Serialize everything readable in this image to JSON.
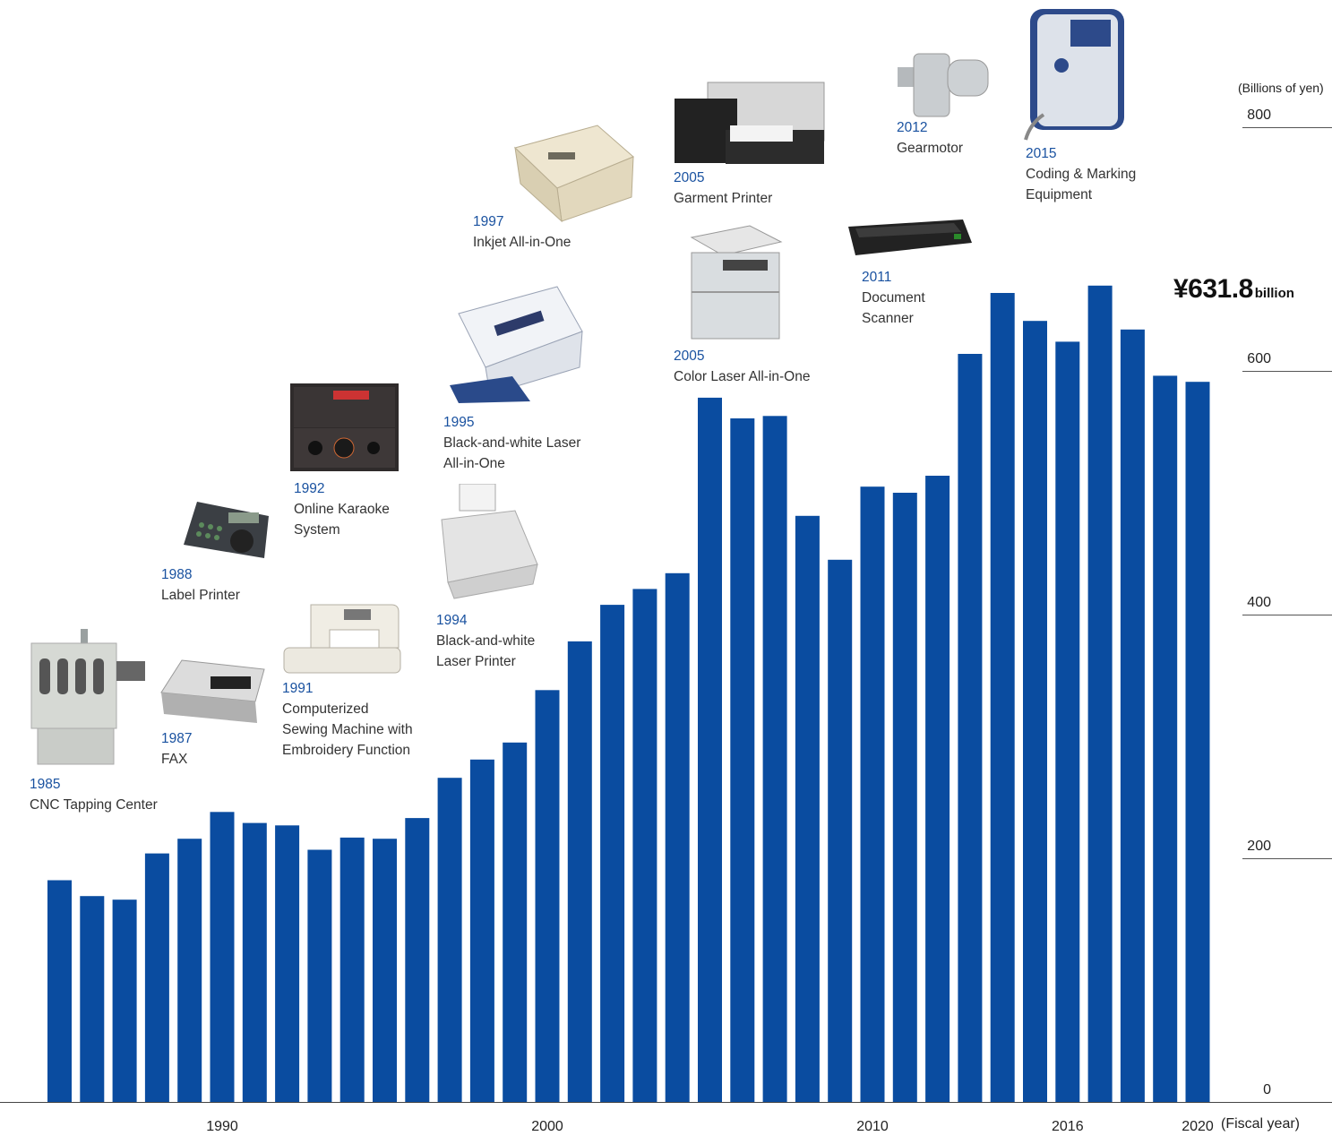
{
  "chart_data": {
    "type": "bar",
    "color": "#0a4ca0",
    "categories": [
      "1985",
      "1986",
      "1987",
      "1988",
      "1989",
      "1990",
      "1991",
      "1992",
      "1993",
      "1994",
      "1995",
      "1996",
      "1997",
      "1998",
      "1999",
      "2000",
      "2001",
      "2002",
      "2003",
      "2004",
      "2005",
      "2006",
      "2007",
      "2008",
      "2009",
      "2010",
      "2011",
      "2012",
      "2013",
      "2014",
      "2015",
      "2016",
      "2017",
      "2018",
      "2019",
      "2020"
    ],
    "values": [
      182,
      169,
      166,
      204,
      216,
      238,
      229,
      227,
      207,
      217,
      216,
      233,
      266,
      281,
      295,
      338,
      378,
      408,
      421,
      434,
      578,
      561,
      563,
      481,
      445,
      505,
      500,
      514,
      614,
      664,
      641,
      624,
      670,
      634,
      596,
      591
    ],
    "x_tick_labels": [
      {
        "category": "1990",
        "label": "1990"
      },
      {
        "category": "2000",
        "label": "2000"
      },
      {
        "category": "2010",
        "label": "2010"
      },
      {
        "category": "2016",
        "label": "2016"
      },
      {
        "category": "2020",
        "label": "2020"
      }
    ],
    "xlabel": "(Fiscal year)",
    "ylabel": "(Billions of yen)",
    "ylim": [
      0,
      800
    ],
    "yticks": [
      0,
      200,
      400,
      600,
      800
    ],
    "grid": false,
    "annotation": {
      "value": "¥631.8",
      "unit": "billion"
    }
  },
  "milestones": [
    {
      "year": "1985",
      "name": [
        "CNC Tapping Center"
      ],
      "icon": "cnc-tapping-center-photo"
    },
    {
      "year": "1987",
      "name": [
        "FAX"
      ],
      "icon": "fax-photo"
    },
    {
      "year": "1988",
      "name": [
        "Label Printer"
      ],
      "icon": "label-printer-photo"
    },
    {
      "year": "1991",
      "name": [
        "Computerized",
        "Sewing Machine with",
        "Embroidery Function"
      ],
      "icon": "sewing-machine-photo"
    },
    {
      "year": "1992",
      "name": [
        "Online Karaoke",
        "System"
      ],
      "icon": "karaoke-system-photo"
    },
    {
      "year": "1994",
      "name": [
        "Black-and-white",
        "Laser Printer"
      ],
      "icon": "laser-printer-photo"
    },
    {
      "year": "1995",
      "name": [
        "Black-and-white Laser",
        "All-in-One"
      ],
      "icon": "laser-all-in-one-photo"
    },
    {
      "year": "1997",
      "name": [
        "Inkjet All-in-One"
      ],
      "icon": "inkjet-all-in-one-photo"
    },
    {
      "year": "2005",
      "name": [
        "Garment Printer"
      ],
      "icon": "garment-printer-photo"
    },
    {
      "year": "2005",
      "name": [
        "Color Laser All-in-One"
      ],
      "icon": "color-laser-all-in-one-photo"
    },
    {
      "year": "2011",
      "name": [
        "Document",
        "Scanner"
      ],
      "icon": "document-scanner-photo"
    },
    {
      "year": "2012",
      "name": [
        "Gearmotor"
      ],
      "icon": "gearmotor-photo"
    },
    {
      "year": "2015",
      "name": [
        "Coding & Marking",
        "Equipment"
      ],
      "icon": "coding-marking-equipment-photo"
    }
  ]
}
